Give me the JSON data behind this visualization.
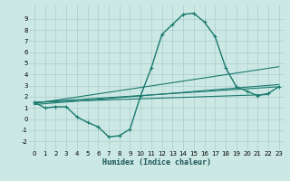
{
  "xlabel": "Humidex (Indice chaleur)",
  "bg_color": "#cce8e4",
  "grid_color": "#aacccc",
  "line_color": "#1a7a6e",
  "xlim": [
    -0.5,
    23.5
  ],
  "ylim": [
    -2.8,
    10.2
  ],
  "xticks": [
    0,
    1,
    2,
    3,
    4,
    5,
    6,
    7,
    8,
    9,
    10,
    11,
    12,
    13,
    14,
    15,
    16,
    17,
    18,
    19,
    20,
    21,
    22,
    23
  ],
  "yticks": [
    -2,
    -1,
    0,
    1,
    2,
    3,
    4,
    5,
    6,
    7,
    8,
    9
  ],
  "line1_x": [
    0,
    1,
    2,
    3,
    4,
    5,
    6,
    7,
    8,
    9,
    10,
    11,
    12,
    13,
    14,
    15,
    16,
    17,
    18,
    19,
    20,
    21,
    22,
    23
  ],
  "line1_y": [
    1.5,
    1.0,
    1.1,
    1.1,
    0.2,
    -0.3,
    -0.7,
    -1.6,
    -1.5,
    -0.9,
    2.1,
    4.6,
    7.6,
    8.5,
    9.4,
    9.5,
    8.7,
    7.4,
    4.6,
    2.9,
    2.5,
    2.1,
    2.3,
    2.9
  ],
  "line2_x": [
    0,
    23
  ],
  "line2_y": [
    1.5,
    2.9
  ],
  "line3_x": [
    0,
    23
  ],
  "line3_y": [
    1.3,
    3.1
  ],
  "line4_x": [
    0,
    23
  ],
  "line4_y": [
    1.4,
    4.7
  ],
  "line5_x": [
    0,
    22
  ],
  "line5_y": [
    1.5,
    2.2
  ]
}
